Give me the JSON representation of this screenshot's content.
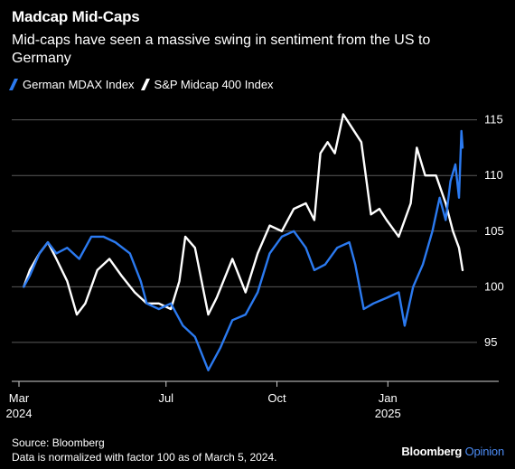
{
  "header": {
    "title": "Madcap Mid-Caps",
    "subtitle": "Mid-caps have seen a massive swing in sentiment from the US to Germany"
  },
  "footer": {
    "source": "Source: Bloomberg",
    "note": "Data is normalized with factor 100 as of March 5, 2024.",
    "brand_main": "Bloomberg",
    "brand_sub": "Opinion"
  },
  "chart_data": {
    "type": "line",
    "legend": "top-left",
    "grid": true,
    "x_range": [
      "2024-02-24",
      "2025-03-16"
    ],
    "ylim": [
      91.5,
      117
    ],
    "yticks": [
      95,
      100,
      105,
      110,
      115
    ],
    "xticks": [
      {
        "date": "2024-03-01",
        "label": "Mar",
        "sublabel": "2024"
      },
      {
        "date": "2024-07-01",
        "label": "Jul",
        "sublabel": ""
      },
      {
        "date": "2024-10-01",
        "label": "Oct",
        "sublabel": ""
      },
      {
        "date": "2025-01-01",
        "label": "Jan",
        "sublabel": "2025"
      }
    ],
    "series": [
      {
        "name": "German MDAX Index",
        "color": "#2b7af0",
        "points": [
          [
            "2024-03-05",
            100
          ],
          [
            "2024-03-10",
            101
          ],
          [
            "2024-03-18",
            103
          ],
          [
            "2024-03-25",
            104
          ],
          [
            "2024-04-01",
            103
          ],
          [
            "2024-04-10",
            103.5
          ],
          [
            "2024-04-20",
            102.5
          ],
          [
            "2024-04-30",
            104.5
          ],
          [
            "2024-05-10",
            104.5
          ],
          [
            "2024-05-20",
            104
          ],
          [
            "2024-06-01",
            103
          ],
          [
            "2024-06-10",
            100.5
          ],
          [
            "2024-06-15",
            98.5
          ],
          [
            "2024-06-25",
            98
          ],
          [
            "2024-07-05",
            98.5
          ],
          [
            "2024-07-15",
            96.5
          ],
          [
            "2024-07-25",
            95.5
          ],
          [
            "2024-08-05",
            92.5
          ],
          [
            "2024-08-15",
            94.5
          ],
          [
            "2024-08-25",
            97
          ],
          [
            "2024-09-05",
            97.5
          ],
          [
            "2024-09-15",
            99.5
          ],
          [
            "2024-09-25",
            103
          ],
          [
            "2024-10-05",
            104.5
          ],
          [
            "2024-10-15",
            105
          ],
          [
            "2024-10-25",
            103.5
          ],
          [
            "2024-11-01",
            101.5
          ],
          [
            "2024-11-10",
            102
          ],
          [
            "2024-11-20",
            103.5
          ],
          [
            "2024-11-30",
            104
          ],
          [
            "2024-12-05",
            102
          ],
          [
            "2024-12-12",
            98
          ],
          [
            "2024-12-20",
            98.5
          ],
          [
            "2024-12-31",
            99
          ],
          [
            "2025-01-10",
            99.5
          ],
          [
            "2025-01-15",
            96.5
          ],
          [
            "2025-01-22",
            100
          ],
          [
            "2025-01-30",
            102
          ],
          [
            "2025-02-07",
            105
          ],
          [
            "2025-02-13",
            108
          ],
          [
            "2025-02-18",
            106
          ],
          [
            "2025-02-22",
            109.5
          ],
          [
            "2025-02-26",
            111
          ],
          [
            "2025-03-01",
            108
          ],
          [
            "2025-03-03",
            114
          ],
          [
            "2025-03-04",
            112.5
          ]
        ]
      },
      {
        "name": "S&P Midcap 400 Index",
        "color": "#ffffff",
        "points": [
          [
            "2024-03-05",
            100
          ],
          [
            "2024-03-10",
            101.5
          ],
          [
            "2024-03-18",
            103
          ],
          [
            "2024-03-25",
            104
          ],
          [
            "2024-04-01",
            102.5
          ],
          [
            "2024-04-10",
            100.5
          ],
          [
            "2024-04-18",
            97.5
          ],
          [
            "2024-04-25",
            98.5
          ],
          [
            "2024-05-05",
            101.5
          ],
          [
            "2024-05-15",
            102.5
          ],
          [
            "2024-05-25",
            101
          ],
          [
            "2024-06-05",
            99.5
          ],
          [
            "2024-06-15",
            98.5
          ],
          [
            "2024-06-25",
            98.5
          ],
          [
            "2024-07-05",
            98
          ],
          [
            "2024-07-12",
            100.5
          ],
          [
            "2024-07-17",
            104.5
          ],
          [
            "2024-07-25",
            103.5
          ],
          [
            "2024-08-05",
            97.5
          ],
          [
            "2024-08-12",
            99
          ],
          [
            "2024-08-25",
            102.5
          ],
          [
            "2024-09-05",
            99.5
          ],
          [
            "2024-09-15",
            103
          ],
          [
            "2024-09-25",
            105.5
          ],
          [
            "2024-10-05",
            105
          ],
          [
            "2024-10-15",
            107
          ],
          [
            "2024-10-25",
            107.5
          ],
          [
            "2024-11-01",
            106
          ],
          [
            "2024-11-06",
            112
          ],
          [
            "2024-11-12",
            113
          ],
          [
            "2024-11-18",
            112
          ],
          [
            "2024-11-25",
            115.5
          ],
          [
            "2024-12-01",
            114.5
          ],
          [
            "2024-12-10",
            113
          ],
          [
            "2024-12-18",
            106.5
          ],
          [
            "2024-12-25",
            107
          ],
          [
            "2024-12-31",
            106
          ],
          [
            "2025-01-10",
            104.5
          ],
          [
            "2025-01-20",
            107.5
          ],
          [
            "2025-01-25",
            112.5
          ],
          [
            "2025-02-01",
            110
          ],
          [
            "2025-02-10",
            110
          ],
          [
            "2025-02-18",
            107.5
          ],
          [
            "2025-02-24",
            105
          ],
          [
            "2025-03-01",
            103.5
          ],
          [
            "2025-03-04",
            101.5
          ]
        ]
      }
    ]
  }
}
